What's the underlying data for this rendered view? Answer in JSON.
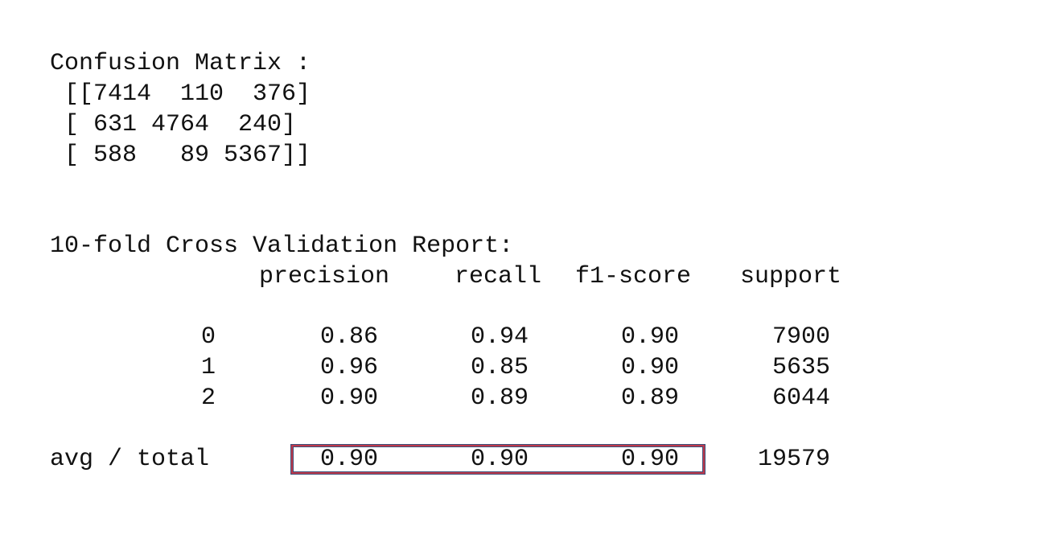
{
  "confusion": {
    "title": "Confusion Matrix :",
    "rows": [
      " [[7414  110  376]",
      " [ 631 4764  240]",
      " [ 588   89 5367]]"
    ]
  },
  "report": {
    "title": "10-fold Cross Validation Report:",
    "headers": [
      "precision",
      "recall",
      "f1-score",
      "support"
    ],
    "rows": [
      {
        "label": "0",
        "precision": "0.86",
        "recall": "0.94",
        "f1": "0.90",
        "support": "7900"
      },
      {
        "label": "1",
        "precision": "0.96",
        "recall": "0.85",
        "f1": "0.90",
        "support": "5635"
      },
      {
        "label": "2",
        "precision": "0.90",
        "recall": "0.89",
        "f1": "0.89",
        "support": "6044"
      }
    ],
    "avg": {
      "label": "avg / total",
      "precision": "0.90",
      "recall": "0.90",
      "f1": "0.90",
      "support": "19579"
    }
  },
  "highlight": {
    "color": "#c0394b",
    "outline": "#3b4f7a"
  }
}
